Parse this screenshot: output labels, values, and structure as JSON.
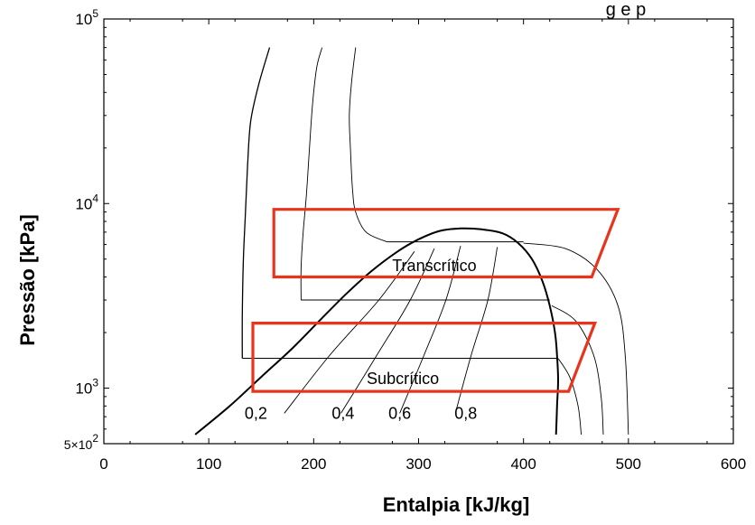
{
  "chart_data": {
    "type": "line",
    "title": "",
    "top_partial_text": "g e p",
    "xlabel": "Entalpia [kJ/kg]",
    "ylabel": "Pressão [kPa]",
    "xlim": [
      0,
      600
    ],
    "ylim": [
      500,
      100000
    ],
    "y_scale": "log",
    "grid": false,
    "x_ticks": [
      {
        "value": 0,
        "label": "0"
      },
      {
        "value": 100,
        "label": "100"
      },
      {
        "value": 200,
        "label": "200"
      },
      {
        "value": 300,
        "label": "300"
      },
      {
        "value": 400,
        "label": "400"
      },
      {
        "value": 500,
        "label": "500"
      },
      {
        "value": 600,
        "label": "600"
      }
    ],
    "y_ticks": [
      {
        "value": 500,
        "base": "5×10",
        "exp": "2"
      },
      {
        "value": 1000,
        "base": "10",
        "exp": "3"
      },
      {
        "value": 10000,
        "base": "10",
        "exp": "4"
      },
      {
        "value": 100000,
        "base": "10",
        "exp": "5"
      }
    ],
    "saturation_dome": [
      [
        87,
        560
      ],
      [
        120,
        800
      ],
      [
        150,
        1150
      ],
      [
        180,
        1650
      ],
      [
        205,
        2300
      ],
      [
        230,
        3200
      ],
      [
        255,
        4300
      ],
      [
        280,
        5500
      ],
      [
        300,
        6400
      ],
      [
        320,
        7100
      ],
      [
        340,
        7330
      ],
      [
        360,
        7250
      ],
      [
        380,
        6900
      ],
      [
        395,
        6100
      ],
      [
        408,
        5000
      ],
      [
        418,
        3800
      ],
      [
        425,
        2800
      ],
      [
        430,
        2000
      ],
      [
        432,
        1500
      ],
      [
        433,
        1100
      ],
      [
        432,
        800
      ],
      [
        431,
        560
      ]
    ],
    "isotherm_lines": [
      [
        [
          132,
          1450
        ],
        [
          132,
          2500
        ],
        [
          133,
          5000
        ],
        [
          135,
          9000
        ],
        [
          137,
          16000
        ],
        [
          140,
          28000
        ],
        [
          148,
          45000
        ],
        [
          158,
          70000
        ]
      ],
      [
        [
          188,
          3000
        ],
        [
          188,
          4500
        ],
        [
          190,
          7000
        ],
        [
          193,
          11000
        ],
        [
          196,
          20000
        ],
        [
          199,
          35000
        ],
        [
          203,
          55000
        ],
        [
          208,
          70000
        ]
      ],
      [
        [
          270,
          6200
        ],
        [
          250,
          7000
        ],
        [
          240,
          9000
        ],
        [
          237,
          12000
        ],
        [
          235,
          20000
        ],
        [
          234,
          30000
        ],
        [
          236,
          45000
        ],
        [
          240,
          70000
        ]
      ]
    ],
    "isobars": [
      {
        "pressure": 1450,
        "from": 132,
        "to": 432
      },
      {
        "pressure": 3000,
        "from": 188,
        "to": 425
      },
      {
        "pressure": 6200,
        "from": 270,
        "to": 400
      }
    ],
    "outer_curves": [
      [
        [
          400,
          6100
        ],
        [
          440,
          5700
        ],
        [
          470,
          4400
        ],
        [
          490,
          2800
        ],
        [
          497,
          1500
        ],
        [
          500,
          560
        ]
      ],
      [
        [
          427,
          2800
        ],
        [
          450,
          2300
        ],
        [
          467,
          1500
        ],
        [
          474,
          900
        ],
        [
          476,
          560
        ]
      ],
      [
        [
          433,
          1450
        ],
        [
          444,
          1150
        ],
        [
          452,
          800
        ],
        [
          455,
          560
        ]
      ]
    ],
    "quality_lines": [
      {
        "label": "0,2",
        "points": [
          [
            172,
            730
          ],
          [
            215,
            1500
          ],
          [
            262,
            3000
          ],
          [
            296,
            5500
          ]
        ]
      },
      {
        "label": "0,4",
        "points": [
          [
            226,
            730
          ],
          [
            260,
            1500
          ],
          [
            292,
            3000
          ],
          [
            315,
            5700
          ]
        ]
      },
      {
        "label": "0,6",
        "points": [
          [
            282,
            730
          ],
          [
            305,
            1500
          ],
          [
            326,
            3000
          ],
          [
            340,
            5900
          ]
        ]
      },
      {
        "label": "0,8",
        "points": [
          [
            335,
            730
          ],
          [
            350,
            1500
          ],
          [
            366,
            3000
          ],
          [
            375,
            5800
          ]
        ]
      }
    ],
    "quality_label_positions": [
      [
        145,
        730
      ],
      [
        228,
        730
      ],
      [
        282,
        730
      ],
      [
        345,
        730
      ]
    ],
    "regions": [
      {
        "label": "Transcrítico",
        "color": "#e8341c",
        "label_pos": [
          315,
          4300
        ],
        "polygon": [
          [
            162,
            9300
          ],
          [
            490,
            9300
          ],
          [
            465,
            4000
          ],
          [
            162,
            4000
          ]
        ]
      },
      {
        "label": "Subcrítico",
        "color": "#e8341c",
        "label_pos": [
          285,
          1050
        ],
        "polygon": [
          [
            142,
            2250
          ],
          [
            468,
            2250
          ],
          [
            443,
            960
          ],
          [
            142,
            960
          ]
        ]
      }
    ]
  }
}
